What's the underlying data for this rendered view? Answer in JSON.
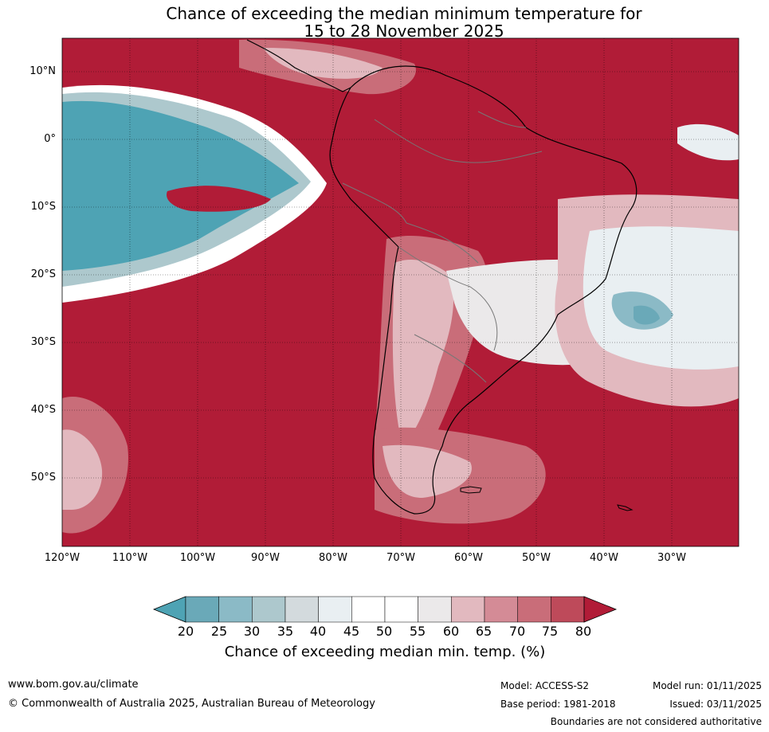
{
  "title": {
    "line1": "Chance of exceeding the median minimum temperature for",
    "line2": "15 to 28 November 2025"
  },
  "axes": {
    "lat_labels": [
      "10°N",
      "0°",
      "10°S",
      "20°S",
      "30°S",
      "40°S",
      "50°S"
    ],
    "lon_labels": [
      "120°W",
      "110°W",
      "100°W",
      "90°W",
      "80°W",
      "70°W",
      "60°W",
      "50°W",
      "40°W",
      "30°W"
    ]
  },
  "colorbar": {
    "ticks": [
      "20",
      "25",
      "30",
      "35",
      "40",
      "45",
      "50",
      "55",
      "60",
      "65",
      "70",
      "75",
      "80"
    ],
    "colors": [
      "#4ea3b4",
      "#6aa9b8",
      "#8bbac6",
      "#adc8cd",
      "#d3dadd",
      "#e9eff2",
      "#ffffff",
      "#ffffff",
      "#ebe9ea",
      "#e2b9bf",
      "#d48b96",
      "#c96d79",
      "#be4a5a",
      "#b11c37"
    ],
    "label": "Chance of exceeding median min. temp. (%)"
  },
  "colors": {
    "high": "#b11c37",
    "mid_high": "#c96d79",
    "low": "#4ea3b4",
    "neutral": "#ffffff"
  },
  "footer": {
    "url": "www.bom.gov.au/climate",
    "copyright": "© Commonwealth of Australia 2025, Australian Bureau of Meteorology",
    "model": "Model: ACCESS-S2",
    "base_period": "Base period: 1981-2018",
    "model_run": "Model run: 01/11/2025",
    "issued": "Issued: 03/11/2025",
    "disclaimer": "Boundaries are not considered authoritative"
  }
}
